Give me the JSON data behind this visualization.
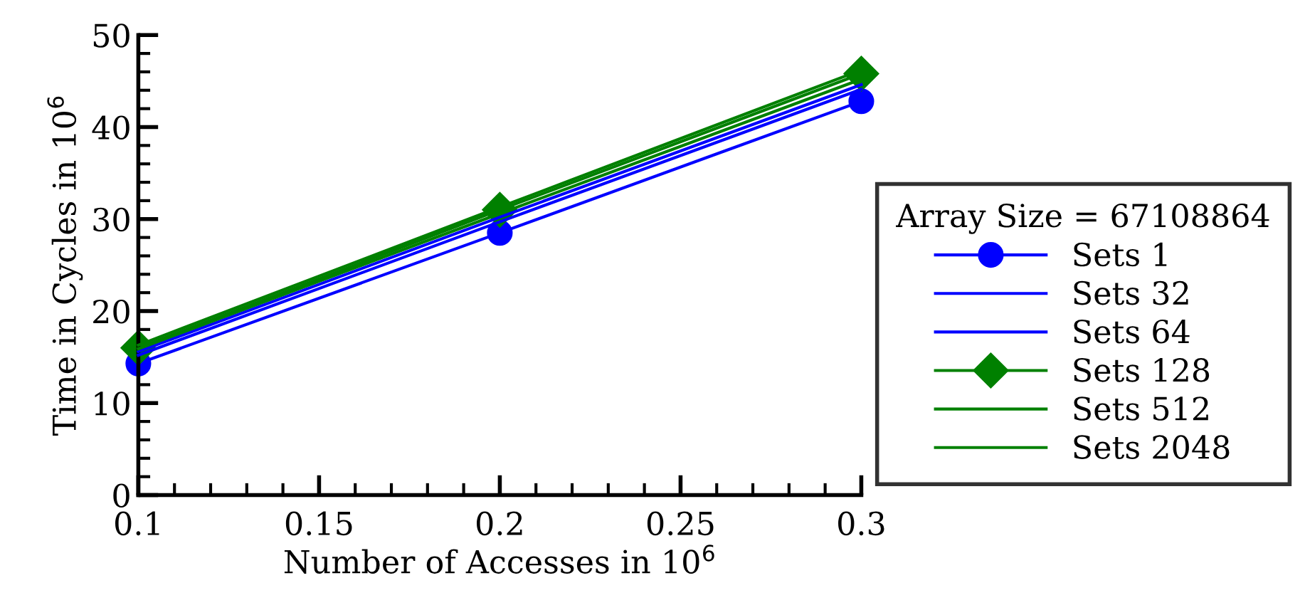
{
  "chart_data": {
    "type": "line",
    "xlabel": "Number of Accesses in 10$^{6}$",
    "ylabel": "Time in Cycles in 10$^{6}$",
    "legend_title": "Array Size = 67108864",
    "x": [
      0.1,
      0.2,
      0.3
    ],
    "series": [
      {
        "name": "Sets 1",
        "color": "#0000ff",
        "marker": "circle",
        "values": [
          14.3,
          28.5,
          42.8
        ]
      },
      {
        "name": "Sets 32",
        "color": "#0000ff",
        "marker": "none",
        "values": [
          15.2,
          29.7,
          44.1
        ]
      },
      {
        "name": "Sets 64",
        "color": "#0000ff",
        "marker": "none",
        "values": [
          15.6,
          30.2,
          44.6
        ]
      },
      {
        "name": "Sets 128",
        "color": "#008000",
        "marker": "diamond",
        "values": [
          16.0,
          31.0,
          45.8
        ]
      },
      {
        "name": "Sets 512",
        "color": "#008000",
        "marker": "none",
        "values": [
          15.9,
          30.6,
          45.2
        ]
      },
      {
        "name": "Sets 2048",
        "color": "#008000",
        "marker": "none",
        "values": [
          16.3,
          31.3,
          46.2
        ]
      }
    ],
    "xlim": [
      0.1,
      0.3
    ],
    "xticks": [
      0.1,
      0.15,
      0.2,
      0.25,
      0.3
    ],
    "ylim": [
      0,
      50
    ],
    "yticks": [
      0,
      10,
      20,
      30,
      40,
      50
    ],
    "legend": "right",
    "line_style": "solid",
    "grid": false
  }
}
